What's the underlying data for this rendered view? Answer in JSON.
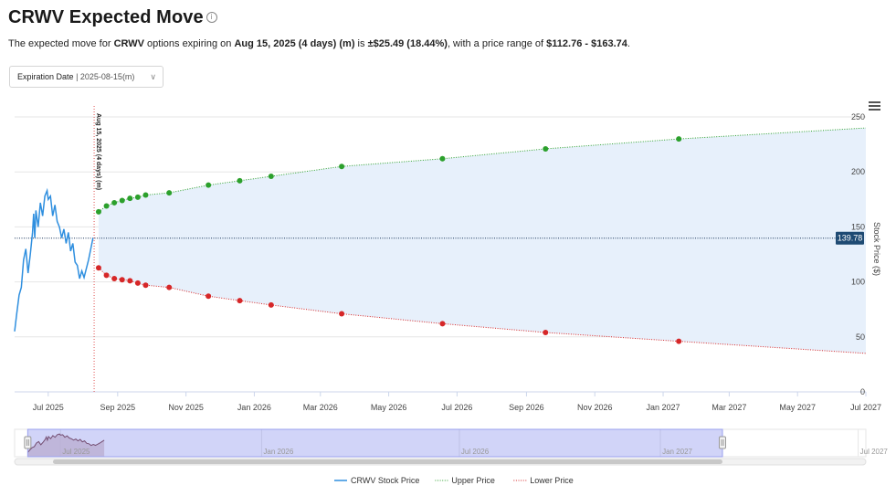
{
  "header": {
    "title": "CRWV Expected Move",
    "info_icon": "info-circle-icon",
    "summary": {
      "p1": "The expected move for ",
      "ticker": "CRWV",
      "p2": " options expiring on ",
      "expiry": "Aug 15, 2025 (4 days) (m)",
      "p3": " is ",
      "move": "±$25.49 (18.44%)",
      "p4": ", with a price range of ",
      "range": "$112.76 - $163.74",
      "p5": "."
    }
  },
  "controls": {
    "expiration_label": "Expiration Date",
    "expiration_value": "| 2025-08-15(m)",
    "chevron": "chevron-down-icon"
  },
  "menu_icon": "hamburger-menu-icon",
  "chart_data": {
    "type": "line",
    "ylabel": "Stock Price ($)",
    "ylim": [
      0,
      260
    ],
    "yticks": [
      0,
      50,
      100,
      150,
      200,
      250
    ],
    "xlim": [
      "2025-06-01",
      "2027-07-01"
    ],
    "xticks": [
      {
        "date": "2025-07-01",
        "label": "Jul 2025"
      },
      {
        "date": "2025-09-01",
        "label": "Sep 2025"
      },
      {
        "date": "2025-11-01",
        "label": "Nov 2025"
      },
      {
        "date": "2026-01-01",
        "label": "Jan 2026"
      },
      {
        "date": "2026-03-01",
        "label": "Mar 2026"
      },
      {
        "date": "2026-05-01",
        "label": "May 2026"
      },
      {
        "date": "2026-07-01",
        "label": "Jul 2026"
      },
      {
        "date": "2026-09-01",
        "label": "Sep 2026"
      },
      {
        "date": "2026-11-01",
        "label": "Nov 2026"
      },
      {
        "date": "2027-01-01",
        "label": "Jan 2027"
      },
      {
        "date": "2027-03-01",
        "label": "Mar 2027"
      },
      {
        "date": "2027-05-01",
        "label": "May 2027"
      },
      {
        "date": "2027-07-01",
        "label": "Jul 2027"
      }
    ],
    "current_price": 139.78,
    "current_price_label": "139.78",
    "expiry_marker": {
      "date": "2025-08-11",
      "label": "Aug 15, 2025 (4 days) (m)"
    },
    "series": [
      {
        "name": "CRWV Stock Price",
        "color": "#2f8fdf",
        "style": "solid",
        "points": [
          [
            "2025-06-01",
            55
          ],
          [
            "2025-06-03",
            72
          ],
          [
            "2025-06-05",
            88
          ],
          [
            "2025-06-07",
            95
          ],
          [
            "2025-06-09",
            120
          ],
          [
            "2025-06-11",
            130
          ],
          [
            "2025-06-13",
            108
          ],
          [
            "2025-06-15",
            125
          ],
          [
            "2025-06-17",
            145
          ],
          [
            "2025-06-18",
            162
          ],
          [
            "2025-06-19",
            140
          ],
          [
            "2025-06-20",
            165
          ],
          [
            "2025-06-22",
            150
          ],
          [
            "2025-06-24",
            172
          ],
          [
            "2025-06-26",
            160
          ],
          [
            "2025-06-28",
            178
          ],
          [
            "2025-06-30",
            183
          ],
          [
            "2025-07-01",
            175
          ],
          [
            "2025-07-03",
            178
          ],
          [
            "2025-07-05",
            160
          ],
          [
            "2025-07-07",
            170
          ],
          [
            "2025-07-09",
            155
          ],
          [
            "2025-07-11",
            150
          ],
          [
            "2025-07-13",
            140
          ],
          [
            "2025-07-15",
            148
          ],
          [
            "2025-07-17",
            135
          ],
          [
            "2025-07-19",
            145
          ],
          [
            "2025-07-21",
            128
          ],
          [
            "2025-07-23",
            135
          ],
          [
            "2025-07-25",
            118
          ],
          [
            "2025-07-27",
            115
          ],
          [
            "2025-07-29",
            103
          ],
          [
            "2025-07-31",
            110
          ],
          [
            "2025-08-02",
            104
          ],
          [
            "2025-08-04",
            112
          ],
          [
            "2025-08-06",
            120
          ],
          [
            "2025-08-08",
            130
          ],
          [
            "2025-08-10",
            140
          ]
        ]
      },
      {
        "name": "Upper Price",
        "color": "#2ca02c",
        "style": "dotted",
        "points": [
          [
            "2025-08-15",
            163.74
          ],
          [
            "2025-08-22",
            169
          ],
          [
            "2025-08-29",
            172
          ],
          [
            "2025-09-05",
            174
          ],
          [
            "2025-09-12",
            176
          ],
          [
            "2025-09-19",
            177
          ],
          [
            "2025-09-26",
            179
          ],
          [
            "2025-10-17",
            181
          ],
          [
            "2025-11-21",
            188
          ],
          [
            "2025-12-19",
            192
          ],
          [
            "2026-01-16",
            196
          ],
          [
            "2026-03-20",
            205
          ],
          [
            "2026-06-18",
            212
          ],
          [
            "2026-09-18",
            221
          ],
          [
            "2027-01-15",
            230
          ]
        ],
        "line_end": [
          "2027-07-01",
          240
        ]
      },
      {
        "name": "Lower Price",
        "color": "#d62728",
        "style": "dotted",
        "points": [
          [
            "2025-08-15",
            112.76
          ],
          [
            "2025-08-22",
            106
          ],
          [
            "2025-08-29",
            103
          ],
          [
            "2025-09-05",
            102
          ],
          [
            "2025-09-12",
            101
          ],
          [
            "2025-09-19",
            99
          ],
          [
            "2025-09-26",
            97
          ],
          [
            "2025-10-17",
            95
          ],
          [
            "2025-11-21",
            87
          ],
          [
            "2025-12-19",
            83
          ],
          [
            "2026-01-16",
            79
          ],
          [
            "2026-03-20",
            71
          ],
          [
            "2026-06-18",
            62
          ],
          [
            "2026-09-18",
            54
          ],
          [
            "2027-01-15",
            46
          ]
        ],
        "line_end": [
          "2027-07-01",
          35
        ]
      }
    ],
    "navigator": {
      "labels": [
        "Jul 2025",
        "Jan 2026",
        "Jul 2026",
        "Jan 2027",
        "Jul 2027"
      ]
    },
    "legend": {
      "position": "bottom-center",
      "items": [
        "CRWV Stock Price",
        "Upper Price",
        "Lower Price"
      ]
    }
  }
}
